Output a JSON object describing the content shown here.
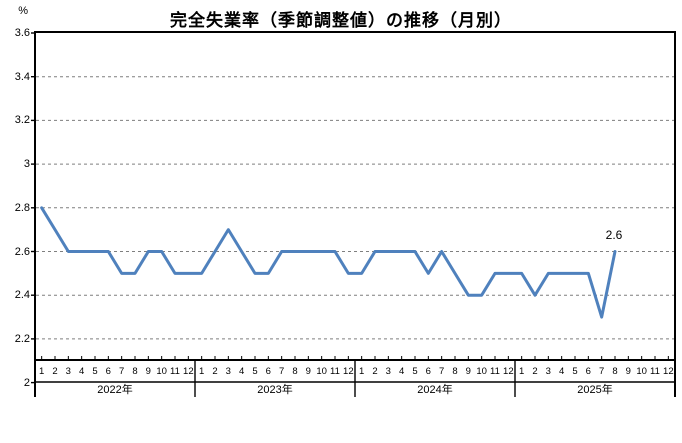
{
  "title": "完全失業率（季節調整値）の推移（月別）",
  "unit_label": "%",
  "chart_data": {
    "type": "line",
    "title": "完全失業率（季節調整値）の推移（月別）",
    "ylabel": "%",
    "xlabel": "",
    "ylim": [
      2.0,
      3.6
    ],
    "y_tick_labels": [
      "3.6",
      "3.4",
      "3.2",
      "3",
      "2.8",
      "2.6",
      "2.4",
      "2.2",
      "2"
    ],
    "y_tick_values": [
      3.6,
      3.4,
      3.2,
      3.0,
      2.8,
      2.6,
      2.4,
      2.2,
      2.0
    ],
    "grid": "horizontal-dashed",
    "legend": "none",
    "line_color": "#4F81BD",
    "grid_color": "#7f7f7f",
    "axis_color": "#000000",
    "years": [
      {
        "label": "2022年",
        "months": [
          "1",
          "2",
          "3",
          "4",
          "5",
          "6",
          "7",
          "8",
          "9",
          "10",
          "11",
          "12"
        ]
      },
      {
        "label": "2023年",
        "months": [
          "1",
          "2",
          "3",
          "4",
          "5",
          "6",
          "7",
          "8",
          "9",
          "10",
          "11",
          "12"
        ]
      },
      {
        "label": "2024年",
        "months": [
          "1",
          "2",
          "3",
          "4",
          "5",
          "6",
          "7",
          "8",
          "9",
          "10",
          "11",
          "12"
        ]
      },
      {
        "label": "2025年",
        "months": [
          "1",
          "2",
          "3",
          "4",
          "5",
          "6",
          "7",
          "8",
          "9",
          "10",
          "11",
          "12"
        ]
      }
    ],
    "series": [
      {
        "name": "完全失業率",
        "values_by_year": {
          "2022": [
            2.8,
            2.7,
            2.6,
            2.6,
            2.6,
            2.6,
            2.5,
            2.5,
            2.6,
            2.6,
            2.5,
            2.5
          ],
          "2023": [
            2.5,
            2.6,
            2.7,
            2.6,
            2.5,
            2.5,
            2.6,
            2.6,
            2.6,
            2.6,
            2.6,
            2.5
          ],
          "2024": [
            2.5,
            2.6,
            2.6,
            2.6,
            2.6,
            2.5,
            2.6,
            2.5,
            2.4,
            2.4,
            2.5,
            2.5
          ],
          "2025": [
            2.5,
            2.4,
            2.5,
            2.5,
            2.5,
            2.5,
            2.3,
            2.6
          ]
        }
      }
    ],
    "last_point_label": "2.6"
  }
}
